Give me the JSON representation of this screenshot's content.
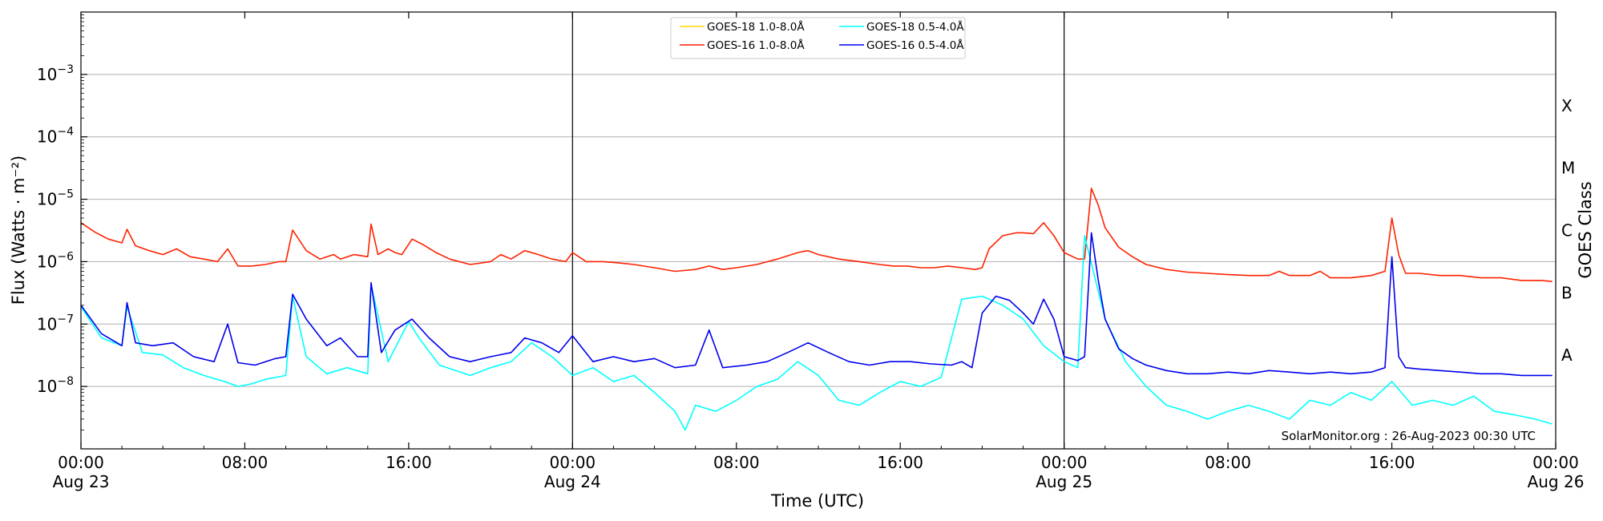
{
  "chart_data": {
    "type": "line",
    "title": "",
    "xlabel": "Time (UTC)",
    "ylabel": "Flux (Watts · m⁻²)",
    "y2label": "GOES Class",
    "yscale": "log",
    "ylim": [
      1e-09,
      0.01
    ],
    "xlim": [
      "2023-08-23T00:00",
      "2023-08-26T00:00"
    ],
    "grid": "horizontal at decades",
    "legend_position": "top-center",
    "credit": "SolarMonitor.org : 26-Aug-2023 00:30 UTC",
    "x_ticks": [
      {
        "time": "2023-08-23T00:00",
        "label": "00:00",
        "sublabel": "Aug 23"
      },
      {
        "time": "2023-08-23T08:00",
        "label": "08:00",
        "sublabel": ""
      },
      {
        "time": "2023-08-23T16:00",
        "label": "16:00",
        "sublabel": ""
      },
      {
        "time": "2023-08-24T00:00",
        "label": "00:00",
        "sublabel": "Aug 24"
      },
      {
        "time": "2023-08-24T08:00",
        "label": "08:00",
        "sublabel": ""
      },
      {
        "time": "2023-08-24T16:00",
        "label": "16:00",
        "sublabel": ""
      },
      {
        "time": "2023-08-25T00:00",
        "label": "00:00",
        "sublabel": "Aug 25"
      },
      {
        "time": "2023-08-25T08:00",
        "label": "08:00",
        "sublabel": ""
      },
      {
        "time": "2023-08-25T16:00",
        "label": "16:00",
        "sublabel": ""
      },
      {
        "time": "2023-08-26T00:00",
        "label": "00:00",
        "sublabel": "Aug 26"
      }
    ],
    "day_lines": [
      "2023-08-24T00:00",
      "2023-08-25T00:00"
    ],
    "y_ticks": [
      {
        "value": 1e-08,
        "base": "10",
        "exp": "−8"
      },
      {
        "value": 1e-07,
        "base": "10",
        "exp": "−7"
      },
      {
        "value": 1e-06,
        "base": "10",
        "exp": "−6"
      },
      {
        "value": 1e-05,
        "base": "10",
        "exp": "−5"
      },
      {
        "value": 0.0001,
        "base": "10",
        "exp": "−4"
      },
      {
        "value": 0.001,
        "base": "10",
        "exp": "−3"
      }
    ],
    "goes_classes": [
      {
        "label": "A",
        "value": 3.16e-08
      },
      {
        "label": "B",
        "value": 3.16e-07
      },
      {
        "label": "C",
        "value": 3.16e-06
      },
      {
        "label": "M",
        "value": 3.16e-05
      },
      {
        "label": "X",
        "value": 0.000316
      }
    ],
    "series": [
      {
        "name": "GOES-18 1.0-8.0Å",
        "color": "#ffd700",
        "x": [],
        "y": []
      },
      {
        "name": "GOES-16 1.0-8.0Å",
        "color": "#ff2200",
        "x": [
          "2023-08-23T00:00",
          "2023-08-23T00:40",
          "2023-08-23T01:20",
          "2023-08-23T02:00",
          "2023-08-23T02:15",
          "2023-08-23T02:40",
          "2023-08-23T03:20",
          "2023-08-23T04:00",
          "2023-08-23T04:40",
          "2023-08-23T05:20",
          "2023-08-23T06:00",
          "2023-08-23T06:40",
          "2023-08-23T07:10",
          "2023-08-23T07:40",
          "2023-08-23T08:20",
          "2023-08-23T09:00",
          "2023-08-23T09:40",
          "2023-08-23T10:00",
          "2023-08-23T10:20",
          "2023-08-23T10:40",
          "2023-08-23T11:00",
          "2023-08-23T11:40",
          "2023-08-23T12:20",
          "2023-08-23T12:40",
          "2023-08-23T13:20",
          "2023-08-23T14:00",
          "2023-08-23T14:10",
          "2023-08-23T14:30",
          "2023-08-23T15:00",
          "2023-08-23T15:20",
          "2023-08-23T15:40",
          "2023-08-23T16:10",
          "2023-08-23T16:40",
          "2023-08-23T17:20",
          "2023-08-23T18:00",
          "2023-08-23T19:00",
          "2023-08-23T20:00",
          "2023-08-23T20:30",
          "2023-08-23T21:00",
          "2023-08-23T21:40",
          "2023-08-23T22:20",
          "2023-08-23T23:00",
          "2023-08-23T23:40",
          "2023-08-24T00:00",
          "2023-08-24T00:40",
          "2023-08-24T01:30",
          "2023-08-24T02:20",
          "2023-08-24T03:00",
          "2023-08-24T04:00",
          "2023-08-24T05:00",
          "2023-08-24T06:00",
          "2023-08-24T06:40",
          "2023-08-24T07:20",
          "2023-08-24T08:00",
          "2023-08-24T09:00",
          "2023-08-24T10:00",
          "2023-08-24T11:00",
          "2023-08-24T11:30",
          "2023-08-24T12:00",
          "2023-08-24T13:00",
          "2023-08-24T14:00",
          "2023-08-24T15:00",
          "2023-08-24T15:40",
          "2023-08-24T16:20",
          "2023-08-24T17:00",
          "2023-08-24T17:40",
          "2023-08-24T18:20",
          "2023-08-24T19:00",
          "2023-08-24T19:40",
          "2023-08-24T20:00",
          "2023-08-24T20:20",
          "2023-08-24T21:00",
          "2023-08-24T21:40",
          "2023-08-24T22:00",
          "2023-08-24T22:30",
          "2023-08-24T23:00",
          "2023-08-24T23:30",
          "2023-08-25T00:00",
          "2023-08-25T00:40",
          "2023-08-25T01:00",
          "2023-08-25T01:20",
          "2023-08-25T01:40",
          "2023-08-25T02:00",
          "2023-08-25T02:40",
          "2023-08-25T03:20",
          "2023-08-25T04:00",
          "2023-08-25T05:00",
          "2023-08-25T06:00",
          "2023-08-25T07:00",
          "2023-08-25T08:00",
          "2023-08-25T09:00",
          "2023-08-25T10:00",
          "2023-08-25T10:30",
          "2023-08-25T11:00",
          "2023-08-25T12:00",
          "2023-08-25T12:30",
          "2023-08-25T13:00",
          "2023-08-25T14:00",
          "2023-08-25T15:00",
          "2023-08-25T15:40",
          "2023-08-25T16:00",
          "2023-08-25T16:20",
          "2023-08-25T16:40",
          "2023-08-25T17:20",
          "2023-08-25T18:20",
          "2023-08-25T19:20",
          "2023-08-25T20:20",
          "2023-08-25T21:20",
          "2023-08-25T22:20",
          "2023-08-25T23:20",
          "2023-08-25T23:50"
        ],
        "y": [
          4.2e-06,
          3e-06,
          2.3e-06,
          2e-06,
          3.3e-06,
          1.8e-06,
          1.5e-06,
          1.3e-06,
          1.6e-06,
          1.2e-06,
          1.1e-06,
          1e-06,
          1.6e-06,
          8.5e-07,
          8.5e-07,
          9e-07,
          1e-06,
          1e-06,
          3.2e-06,
          2.2e-06,
          1.5e-06,
          1.1e-06,
          1.3e-06,
          1.1e-06,
          1.3e-06,
          1.2e-06,
          4e-06,
          1.3e-06,
          1.6e-06,
          1.4e-06,
          1.3e-06,
          2.3e-06,
          1.9e-06,
          1.4e-06,
          1.1e-06,
          9e-07,
          1e-06,
          1.3e-06,
          1.1e-06,
          1.5e-06,
          1.3e-06,
          1.1e-06,
          1e-06,
          1.4e-06,
          1e-06,
          1e-06,
          9.5e-07,
          9e-07,
          8e-07,
          7e-07,
          7.5e-07,
          8.5e-07,
          7.5e-07,
          8e-07,
          9e-07,
          1.1e-06,
          1.4e-06,
          1.5e-06,
          1.3e-06,
          1.1e-06,
          1e-06,
          9e-07,
          8.5e-07,
          8.5e-07,
          8e-07,
          8e-07,
          8.5e-07,
          8e-07,
          7.5e-07,
          8e-07,
          1.6e-06,
          2.6e-06,
          2.9e-06,
          2.9e-06,
          2.8e-06,
          4.2e-06,
          2.6e-06,
          1.4e-06,
          1.1e-06,
          1.1e-06,
          1.5e-05,
          8e-06,
          3.5e-06,
          1.7e-06,
          1.2e-06,
          9e-07,
          7.5e-07,
          6.8e-07,
          6.5e-07,
          6.2e-07,
          6e-07,
          6e-07,
          7e-07,
          6e-07,
          6e-07,
          7e-07,
          5.5e-07,
          5.5e-07,
          6e-07,
          7e-07,
          5e-06,
          1.3e-06,
          6.5e-07,
          6.5e-07,
          6e-07,
          6e-07,
          5.5e-07,
          5.5e-07,
          5e-07,
          5e-07,
          4.8e-07
        ]
      },
      {
        "name": "GOES-18 0.5-4.0Å",
        "color": "#00ffff",
        "x": [
          "2023-08-23T00:00",
          "2023-08-23T01:00",
          "2023-08-23T02:00",
          "2023-08-23T02:15",
          "2023-08-23T03:00",
          "2023-08-23T04:00",
          "2023-08-23T05:00",
          "2023-08-23T06:00",
          "2023-08-23T07:00",
          "2023-08-23T07:40",
          "2023-08-23T08:20",
          "2023-08-23T09:00",
          "2023-08-23T10:00",
          "2023-08-23T10:20",
          "2023-08-23T11:00",
          "2023-08-23T12:00",
          "2023-08-23T13:00",
          "2023-08-23T14:00",
          "2023-08-23T14:10",
          "2023-08-23T15:00",
          "2023-08-23T16:00",
          "2023-08-23T16:30",
          "2023-08-23T17:30",
          "2023-08-23T19:00",
          "2023-08-23T20:00",
          "2023-08-23T21:00",
          "2023-08-23T22:00",
          "2023-08-23T23:00",
          "2023-08-24T00:00",
          "2023-08-24T01:00",
          "2023-08-24T02:00",
          "2023-08-24T03:00",
          "2023-08-24T04:00",
          "2023-08-24T05:00",
          "2023-08-24T05:30",
          "2023-08-24T06:00",
          "2023-08-24T07:00",
          "2023-08-24T08:00",
          "2023-08-24T09:00",
          "2023-08-24T10:00",
          "2023-08-24T11:00",
          "2023-08-24T12:00",
          "2023-08-24T13:00",
          "2023-08-24T14:00",
          "2023-08-24T15:00",
          "2023-08-24T16:00",
          "2023-08-24T17:00",
          "2023-08-24T18:00",
          "2023-08-24T19:00",
          "2023-08-24T20:00",
          "2023-08-24T21:00",
          "2023-08-24T22:00",
          "2023-08-24T23:00",
          "2023-08-25T00:00",
          "2023-08-25T00:40",
          "2023-08-25T01:00",
          "2023-08-25T02:00",
          "2023-08-25T03:00",
          "2023-08-25T04:00",
          "2023-08-25T05:00",
          "2023-08-25T06:00",
          "2023-08-25T07:00",
          "2023-08-25T08:00",
          "2023-08-25T09:00",
          "2023-08-25T10:00",
          "2023-08-25T11:00",
          "2023-08-25T12:00",
          "2023-08-25T13:00",
          "2023-08-25T14:00",
          "2023-08-25T15:00",
          "2023-08-25T16:00",
          "2023-08-25T17:00",
          "2023-08-25T18:00",
          "2023-08-25T19:00",
          "2023-08-25T20:00",
          "2023-08-25T21:00",
          "2023-08-25T22:00",
          "2023-08-25T23:00",
          "2023-08-25T23:50"
        ],
        "y": [
          1.9e-07,
          6e-08,
          4.5e-08,
          1.9e-07,
          3.5e-08,
          3.2e-08,
          2e-08,
          1.5e-08,
          1.2e-08,
          1e-08,
          1.1e-08,
          1.3e-08,
          1.5e-08,
          2.8e-07,
          3e-08,
          1.6e-08,
          2e-08,
          1.6e-08,
          4.3e-07,
          2.5e-08,
          1.1e-07,
          6e-08,
          2.2e-08,
          1.5e-08,
          2e-08,
          2.5e-08,
          5e-08,
          3e-08,
          1.5e-08,
          2e-08,
          1.2e-08,
          1.5e-08,
          8e-09,
          4e-09,
          2e-09,
          5e-09,
          4e-09,
          6e-09,
          1e-08,
          1.3e-08,
          2.5e-08,
          1.5e-08,
          6e-09,
          5e-09,
          8e-09,
          1.2e-08,
          1e-08,
          1.4e-08,
          2.5e-07,
          2.8e-07,
          2e-07,
          1.2e-07,
          4.5e-08,
          2.5e-08,
          2e-08,
          2.6e-06,
          1.2e-07,
          2.5e-08,
          1e-08,
          5e-09,
          4e-09,
          3e-09,
          4e-09,
          5e-09,
          4e-09,
          3e-09,
          6e-09,
          5e-09,
          8e-09,
          6e-09,
          1.2e-08,
          5e-09,
          6e-09,
          5e-09,
          7e-09,
          4e-09,
          3.5e-09,
          3e-09,
          2.5e-09
        ]
      },
      {
        "name": "GOES-16 0.5-4.0Å",
        "color": "#0000ee",
        "x": [
          "2023-08-23T00:00",
          "2023-08-23T01:00",
          "2023-08-23T02:00",
          "2023-08-23T02:15",
          "2023-08-23T02:40",
          "2023-08-23T03:30",
          "2023-08-23T04:30",
          "2023-08-23T05:30",
          "2023-08-23T06:30",
          "2023-08-23T07:10",
          "2023-08-23T07:40",
          "2023-08-23T08:30",
          "2023-08-23T09:30",
          "2023-08-23T10:00",
          "2023-08-23T10:20",
          "2023-08-23T11:00",
          "2023-08-23T12:00",
          "2023-08-23T12:40",
          "2023-08-23T13:30",
          "2023-08-23T14:00",
          "2023-08-23T14:10",
          "2023-08-23T14:40",
          "2023-08-23T15:20",
          "2023-08-23T16:10",
          "2023-08-23T17:00",
          "2023-08-23T18:00",
          "2023-08-23T19:00",
          "2023-08-23T20:00",
          "2023-08-23T21:00",
          "2023-08-23T21:40",
          "2023-08-23T22:30",
          "2023-08-23T23:20",
          "2023-08-24T00:00",
          "2023-08-24T01:00",
          "2023-08-24T02:00",
          "2023-08-24T03:00",
          "2023-08-24T04:00",
          "2023-08-24T05:00",
          "2023-08-24T06:00",
          "2023-08-24T06:40",
          "2023-08-24T07:20",
          "2023-08-24T08:30",
          "2023-08-24T09:30",
          "2023-08-24T10:30",
          "2023-08-24T11:30",
          "2023-08-24T12:30",
          "2023-08-24T13:30",
          "2023-08-24T14:30",
          "2023-08-24T15:30",
          "2023-08-24T16:30",
          "2023-08-24T17:30",
          "2023-08-24T18:30",
          "2023-08-24T19:00",
          "2023-08-24T19:30",
          "2023-08-24T20:00",
          "2023-08-24T20:40",
          "2023-08-24T21:20",
          "2023-08-24T22:00",
          "2023-08-24T22:30",
          "2023-08-24T23:00",
          "2023-08-24T23:30",
          "2023-08-25T00:00",
          "2023-08-25T00:40",
          "2023-08-25T01:00",
          "2023-08-25T01:20",
          "2023-08-25T01:40",
          "2023-08-25T02:00",
          "2023-08-25T02:40",
          "2023-08-25T03:20",
          "2023-08-25T04:00",
          "2023-08-25T05:00",
          "2023-08-25T06:00",
          "2023-08-25T07:00",
          "2023-08-25T08:00",
          "2023-08-25T09:00",
          "2023-08-25T10:00",
          "2023-08-25T11:00",
          "2023-08-25T12:00",
          "2023-08-25T13:00",
          "2023-08-25T14:00",
          "2023-08-25T15:00",
          "2023-08-25T15:40",
          "2023-08-25T16:00",
          "2023-08-25T16:20",
          "2023-08-25T16:40",
          "2023-08-25T17:20",
          "2023-08-25T18:20",
          "2023-08-25T19:20",
          "2023-08-25T20:20",
          "2023-08-25T21:20",
          "2023-08-25T22:20",
          "2023-08-25T23:20",
          "2023-08-25T23:50"
        ],
        "y": [
          2e-07,
          7e-08,
          4.5e-08,
          2.2e-07,
          5e-08,
          4.5e-08,
          5e-08,
          3e-08,
          2.5e-08,
          1e-07,
          2.4e-08,
          2.2e-08,
          2.8e-08,
          3e-08,
          3e-07,
          1.2e-07,
          4.5e-08,
          6e-08,
          3e-08,
          3e-08,
          4.6e-07,
          3.5e-08,
          8e-08,
          1.2e-07,
          6e-08,
          3e-08,
          2.5e-08,
          3e-08,
          3.5e-08,
          6e-08,
          5e-08,
          3.5e-08,
          6.5e-08,
          2.5e-08,
          3e-08,
          2.5e-08,
          2.8e-08,
          2e-08,
          2.2e-08,
          8e-08,
          2e-08,
          2.2e-08,
          2.5e-08,
          3.5e-08,
          5e-08,
          3.5e-08,
          2.5e-08,
          2.2e-08,
          2.5e-08,
          2.5e-08,
          2.3e-08,
          2.2e-08,
          2.5e-08,
          2e-08,
          1.5e-07,
          2.8e-07,
          2.4e-07,
          1.5e-07,
          1e-07,
          2.5e-07,
          1.2e-07,
          3e-08,
          2.6e-08,
          3e-08,
          2.9e-06,
          5e-07,
          1.2e-07,
          4e-08,
          2.8e-08,
          2.2e-08,
          1.8e-08,
          1.6e-08,
          1.6e-08,
          1.7e-08,
          1.6e-08,
          1.8e-08,
          1.7e-08,
          1.6e-08,
          1.7e-08,
          1.6e-08,
          1.7e-08,
          2e-08,
          1.2e-06,
          3e-08,
          2e-08,
          1.9e-08,
          1.8e-08,
          1.7e-08,
          1.6e-08,
          1.6e-08,
          1.5e-08,
          1.5e-08,
          1.5e-08
        ]
      }
    ]
  }
}
